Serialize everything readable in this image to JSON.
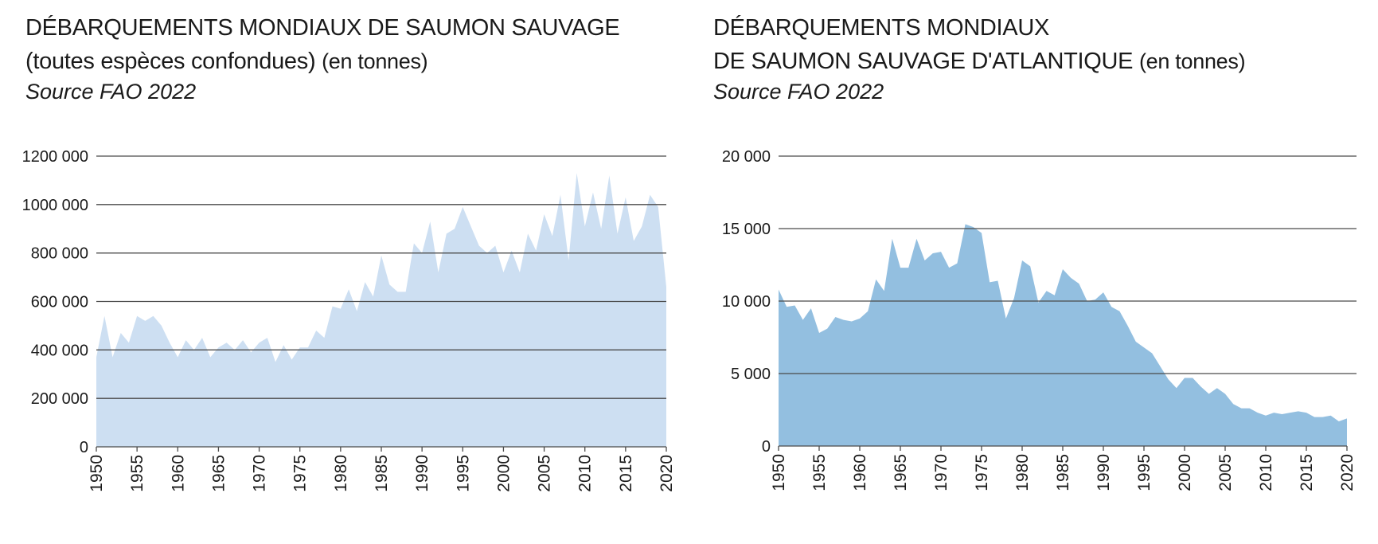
{
  "charts": [
    {
      "title_line1": "DÉBARQUEMENTS MONDIAUX DE SAUMON SAUVAGE",
      "title_line2": "(toutes espèces confondues)",
      "unit": "(en tonnes)",
      "source": "Source FAO 2022"
    },
    {
      "title_line1": "DÉBARQUEMENTS MONDIAUX",
      "title_line2": "DE SAUMON SAUVAGE D'ATLANTIQUE",
      "unit": "(en tonnes)",
      "source": "Source FAO 2022"
    }
  ],
  "chart_data": [
    {
      "type": "area",
      "title": "DÉBARQUEMENTS MONDIAUX DE SAUMON SAUVAGE (toutes espèces confondues) (en tonnes)",
      "color": "#cddff2",
      "xlim": [
        1950,
        2020
      ],
      "ylim": [
        0,
        1200000
      ],
      "yticks": [
        0,
        200000,
        400000,
        600000,
        800000,
        1000000,
        1200000
      ],
      "ytick_labels": [
        "0",
        "200 000",
        "400 000",
        "600 000",
        "800 000",
        "1000 000",
        "1200 000"
      ],
      "xticks": [
        1950,
        1955,
        1960,
        1965,
        1970,
        1975,
        1980,
        1985,
        1990,
        1995,
        2000,
        2005,
        2010,
        2015,
        2020
      ],
      "grid": "horizontal",
      "x": [
        1950,
        1951,
        1952,
        1953,
        1954,
        1955,
        1956,
        1957,
        1958,
        1959,
        1960,
        1961,
        1962,
        1963,
        1964,
        1965,
        1966,
        1967,
        1968,
        1969,
        1970,
        1971,
        1972,
        1973,
        1974,
        1975,
        1976,
        1977,
        1978,
        1979,
        1980,
        1981,
        1982,
        1983,
        1984,
        1985,
        1986,
        1987,
        1988,
        1989,
        1990,
        1991,
        1992,
        1993,
        1994,
        1995,
        1996,
        1997,
        1998,
        1999,
        2000,
        2001,
        2002,
        2003,
        2004,
        2005,
        2006,
        2007,
        2008,
        2009,
        2010,
        2011,
        2012,
        2013,
        2014,
        2015,
        2016,
        2017,
        2018,
        2019,
        2020
      ],
      "values": [
        370000,
        540000,
        370000,
        470000,
        430000,
        540000,
        520000,
        540000,
        500000,
        430000,
        370000,
        440000,
        400000,
        450000,
        370000,
        410000,
        430000,
        400000,
        440000,
        390000,
        430000,
        450000,
        350000,
        420000,
        360000,
        410000,
        410000,
        480000,
        450000,
        580000,
        570000,
        650000,
        560000,
        680000,
        620000,
        790000,
        670000,
        640000,
        640000,
        840000,
        800000,
        930000,
        720000,
        880000,
        900000,
        990000,
        910000,
        830000,
        800000,
        830000,
        720000,
        810000,
        720000,
        880000,
        810000,
        960000,
        870000,
        1040000,
        770000,
        1130000,
        910000,
        1050000,
        900000,
        1120000,
        880000,
        1030000,
        850000,
        910000,
        1040000,
        990000,
        660000
      ]
    },
    {
      "type": "area",
      "title": "DÉBARQUEMENTS MONDIAUX DE SAUMON SAUVAGE D'ATLANTIQUE (en tonnes)",
      "color": "#93bfe0",
      "xlim": [
        1950,
        2020
      ],
      "ylim": [
        0,
        20000
      ],
      "yticks": [
        0,
        5000,
        10000,
        15000,
        20000
      ],
      "ytick_labels": [
        "0",
        "5 000",
        "10 000",
        "15 000",
        "20 000"
      ],
      "xticks": [
        1950,
        1955,
        1960,
        1965,
        1970,
        1975,
        1980,
        1985,
        1990,
        1995,
        2000,
        2005,
        2010,
        2015,
        2020
      ],
      "grid": "horizontal",
      "x": [
        1950,
        1951,
        1952,
        1953,
        1954,
        1955,
        1956,
        1957,
        1958,
        1959,
        1960,
        1961,
        1962,
        1963,
        1964,
        1965,
        1966,
        1967,
        1968,
        1969,
        1970,
        1971,
        1972,
        1973,
        1974,
        1975,
        1976,
        1977,
        1978,
        1979,
        1980,
        1981,
        1982,
        1983,
        1984,
        1985,
        1986,
        1987,
        1988,
        1989,
        1990,
        1991,
        1992,
        1993,
        1994,
        1995,
        1996,
        1997,
        1998,
        1999,
        2000,
        2001,
        2002,
        2003,
        2004,
        2005,
        2006,
        2007,
        2008,
        2009,
        2010,
        2011,
        2012,
        2013,
        2014,
        2015,
        2016,
        2017,
        2018,
        2019,
        2020
      ],
      "values": [
        10800,
        9600,
        9700,
        8700,
        9500,
        7800,
        8100,
        8900,
        8700,
        8600,
        8800,
        9300,
        11500,
        10700,
        14300,
        12300,
        12300,
        14300,
        12800,
        13300,
        13400,
        12300,
        12600,
        15300,
        15100,
        14700,
        11300,
        11400,
        8800,
        10200,
        12800,
        12400,
        9900,
        10700,
        10400,
        12200,
        11600,
        11200,
        10000,
        10100,
        10600,
        9600,
        9300,
        8300,
        7200,
        6800,
        6400,
        5500,
        4600,
        4000,
        4700,
        4700,
        4100,
        3600,
        4000,
        3600,
        2900,
        2600,
        2600,
        2300,
        2100,
        2300,
        2200,
        2300,
        2400,
        2300,
        2000,
        2000,
        2100,
        1700,
        1900
      ]
    }
  ]
}
